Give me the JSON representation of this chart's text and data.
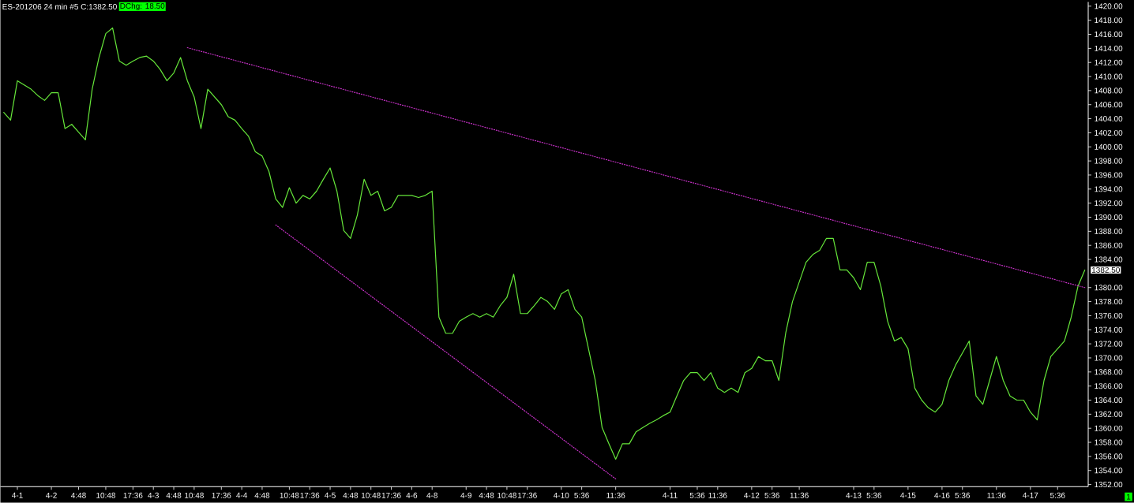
{
  "chart_data": {
    "type": "line",
    "title": "ES-201206 24 min #5 C:1382.50",
    "subtitle": "DChg: 18.50",
    "categories": [
      null,
      null,
      "4-1",
      null,
      null,
      null,
      null,
      "4-2",
      null,
      null,
      null,
      "4:48",
      null,
      null,
      null,
      "10:48",
      null,
      null,
      null,
      "17:36",
      null,
      null,
      "4-3",
      null,
      null,
      "4:48",
      null,
      null,
      "10:48",
      null,
      null,
      null,
      "17:36",
      null,
      null,
      "4-4",
      null,
      null,
      "4:48",
      null,
      null,
      null,
      "10:48",
      null,
      null,
      "17:36",
      null,
      null,
      "4-5",
      null,
      null,
      "4:48",
      null,
      null,
      "10:48",
      null,
      null,
      "17:36",
      null,
      null,
      "4-6",
      null,
      null,
      "4-8",
      null,
      null,
      null,
      null,
      "4-9",
      null,
      null,
      "4:48",
      null,
      null,
      "10:48",
      null,
      null,
      "17:36",
      null,
      null,
      null,
      null,
      "4-10",
      null,
      null,
      "5:36",
      null,
      null,
      null,
      null,
      "11:36",
      null,
      null,
      null,
      null,
      null,
      null,
      null,
      "4-11",
      null,
      null,
      null,
      "5:36",
      null,
      null,
      "11:36",
      null,
      null,
      null,
      null,
      "4-12",
      null,
      null,
      "5:36",
      null,
      null,
      null,
      "11:36",
      null,
      null,
      null,
      null,
      null,
      null,
      null,
      "4-13",
      null,
      null,
      "5:36",
      null,
      null,
      null,
      null,
      "4-15",
      null,
      null,
      null,
      null,
      "4-16",
      null,
      null,
      "5:36",
      null,
      null,
      null,
      null,
      "11:36",
      null,
      null,
      null,
      null,
      "4-17",
      null,
      null,
      null,
      "5:36",
      null,
      null,
      null,
      null
    ],
    "series": [
      {
        "color": "#66e63a",
        "values": [
          1404.9,
          1403.8,
          1409.4,
          1408.8,
          1408.2,
          1407.3,
          1406.6,
          1407.7,
          1407.7,
          1402.6,
          1403.2,
          1402.1,
          1401.0,
          1408.2,
          1412.7,
          1416.1,
          1416.9,
          1412.2,
          1411.6,
          1412.2,
          1412.7,
          1412.9,
          1412.2,
          1411.0,
          1409.4,
          1410.5,
          1412.7,
          1409.4,
          1407.1,
          1402.6,
          1408.2,
          1407.1,
          1406.0,
          1404.3,
          1403.8,
          1402.6,
          1401.5,
          1399.3,
          1398.7,
          1396.5,
          1392.6,
          1391.4,
          1394.2,
          1392.0,
          1393.1,
          1392.6,
          1393.7,
          1395.4,
          1397.0,
          1393.7,
          1388.1,
          1387.0,
          1390.3,
          1395.4,
          1393.1,
          1393.7,
          1390.9,
          1391.4,
          1393.1,
          1393.1,
          1393.1,
          1392.8,
          1393.1,
          1393.7,
          1375.8,
          1373.5,
          1373.5,
          1375.2,
          1375.8,
          1376.3,
          1375.8,
          1376.3,
          1375.8,
          1377.4,
          1378.6,
          1381.9,
          1376.3,
          1376.3,
          1377.4,
          1378.6,
          1378.0,
          1376.9,
          1379.1,
          1379.7,
          1376.9,
          1375.8,
          1371.3,
          1366.8,
          1360.1,
          1357.8,
          1355.6,
          1357.8,
          1357.8,
          1359.5,
          1360.1,
          1360.7,
          1361.2,
          1361.8,
          1362.3,
          1364.6,
          1366.8,
          1367.9,
          1367.9,
          1366.8,
          1367.9,
          1365.7,
          1365.1,
          1365.7,
          1365.1,
          1367.9,
          1368.5,
          1370.2,
          1369.6,
          1369.6,
          1366.8,
          1373.5,
          1378.0,
          1380.8,
          1383.6,
          1384.7,
          1385.3,
          1387.0,
          1387.0,
          1382.5,
          1382.5,
          1381.4,
          1379.7,
          1383.6,
          1383.6,
          1380.2,
          1375.2,
          1372.4,
          1372.9,
          1371.3,
          1365.7,
          1364.0,
          1362.9,
          1362.3,
          1363.4,
          1366.8,
          1369.0,
          1370.7,
          1372.4,
          1364.6,
          1363.4,
          1366.8,
          1370.2,
          1366.8,
          1364.6,
          1364.0,
          1364.0,
          1362.3,
          1361.2,
          1366.8,
          1370.2,
          1371.3,
          1372.4,
          1375.8,
          1380.2,
          1382.5
        ]
      },
      {
        "type": "line",
        "color": "#cc33cc",
        "line_style": "dotted",
        "values": [
          null,
          null,
          null,
          null,
          null,
          null,
          null,
          null,
          null,
          null,
          null,
          null,
          null,
          null,
          null,
          null,
          null,
          null,
          null,
          null,
          null,
          null,
          null,
          null,
          null,
          null,
          null,
          1414.1,
          null,
          null,
          null,
          null,
          null,
          null,
          null,
          null,
          null,
          null,
          null,
          null,
          null,
          null,
          null,
          null,
          null,
          null,
          null,
          null,
          null,
          null,
          null,
          null,
          null,
          null,
          null,
          null,
          null,
          null,
          null,
          null,
          null,
          null,
          null,
          null,
          null,
          null,
          null,
          null,
          null,
          null,
          null,
          null,
          null,
          null,
          null,
          null,
          null,
          null,
          null,
          null,
          null,
          null,
          null,
          null,
          null,
          null,
          null,
          null,
          null,
          null,
          null,
          null,
          null,
          null,
          null,
          null,
          null,
          null,
          null,
          null,
          null,
          null,
          null,
          null,
          null,
          null,
          null,
          null,
          null,
          null,
          null,
          null,
          null,
          null,
          null,
          null,
          null,
          null,
          null,
          null,
          null,
          null,
          null,
          null,
          null,
          null,
          null,
          null,
          null,
          null,
          null,
          null,
          null,
          null,
          null,
          null,
          null,
          null,
          null,
          null,
          null,
          null,
          null,
          null,
          null,
          null,
          null,
          null,
          null,
          null,
          null,
          null,
          null,
          null,
          null,
          null,
          null,
          null,
          null,
          1380.0
        ]
      },
      {
        "type": "line",
        "color": "#cc33cc",
        "line_style": "dotted",
        "values": [
          null,
          null,
          null,
          null,
          null,
          null,
          null,
          null,
          null,
          null,
          null,
          null,
          null,
          null,
          null,
          null,
          null,
          null,
          null,
          null,
          null,
          null,
          null,
          null,
          null,
          null,
          null,
          null,
          null,
          null,
          null,
          null,
          null,
          null,
          null,
          null,
          null,
          null,
          null,
          null,
          1388.9,
          null,
          null,
          null,
          null,
          null,
          null,
          null,
          null,
          null,
          null,
          null,
          null,
          null,
          null,
          null,
          null,
          null,
          null,
          null,
          null,
          null,
          null,
          null,
          null,
          null,
          null,
          null,
          null,
          null,
          null,
          null,
          null,
          null,
          null,
          null,
          null,
          null,
          null,
          null,
          null,
          null,
          null,
          null,
          null,
          null,
          null,
          null,
          null,
          null,
          1352.8,
          null,
          null,
          null,
          null,
          null,
          null,
          null,
          null,
          null,
          null,
          null,
          null,
          null,
          null,
          null,
          null,
          null,
          null,
          null,
          null,
          null,
          null,
          null,
          null,
          null,
          null,
          null,
          null,
          null,
          null,
          null,
          null,
          null,
          null,
          null,
          null,
          null,
          null,
          null,
          null,
          null,
          null,
          null,
          null,
          null,
          null,
          null,
          null,
          null,
          null,
          null,
          null,
          null,
          null,
          null,
          null,
          null,
          null,
          null,
          null,
          null,
          null,
          null,
          null,
          null,
          null,
          null,
          null,
          null
        ]
      }
    ],
    "ylim": [
      1351.7,
      1420.6
    ],
    "yticks": [
      {
        "value": 1352,
        "label": "1352.00"
      },
      {
        "value": 1354,
        "label": "1354.00"
      },
      {
        "value": 1356,
        "label": "1356.00"
      },
      {
        "value": 1358,
        "label": "1358.00"
      },
      {
        "value": 1360,
        "label": "1360.00"
      },
      {
        "value": 1362,
        "label": "1362.00"
      },
      {
        "value": 1364,
        "label": "1364.00"
      },
      {
        "value": 1366,
        "label": "1366.00"
      },
      {
        "value": 1368,
        "label": "1368.00"
      },
      {
        "value": 1370,
        "label": "1370.00"
      },
      {
        "value": 1372,
        "label": "1372.00"
      },
      {
        "value": 1374,
        "label": "1374.00"
      },
      {
        "value": 1376,
        "label": "1376.00"
      },
      {
        "value": 1378,
        "label": "1378.00"
      },
      {
        "value": 1380,
        "label": "1380.00"
      },
      {
        "value": 1384,
        "label": "1384.00"
      },
      {
        "value": 1386,
        "label": "1386.00"
      },
      {
        "value": 1388,
        "label": "1388.00"
      },
      {
        "value": 1390,
        "label": "1390.00"
      },
      {
        "value": 1392,
        "label": "1392.00"
      },
      {
        "value": 1394,
        "label": "1394.00"
      },
      {
        "value": 1396,
        "label": "1396.00"
      },
      {
        "value": 1398,
        "label": "1398.00"
      },
      {
        "value": 1400,
        "label": "1400.00"
      },
      {
        "value": 1402,
        "label": "1402.00"
      },
      {
        "value": 1404,
        "label": "1404.00"
      },
      {
        "value": 1406,
        "label": "1406.00"
      },
      {
        "value": 1408,
        "label": "1408.00"
      },
      {
        "value": 1410,
        "label": "1410.00"
      },
      {
        "value": 1412,
        "label": "1412.00"
      },
      {
        "value": 1414,
        "label": "1414.00"
      },
      {
        "value": 1416,
        "label": "1416.00"
      },
      {
        "value": 1418,
        "label": "1418.00"
      },
      {
        "value": 1420,
        "label": "1420.00"
      }
    ],
    "annotations": [
      "1382.50",
      "1"
    ]
  }
}
